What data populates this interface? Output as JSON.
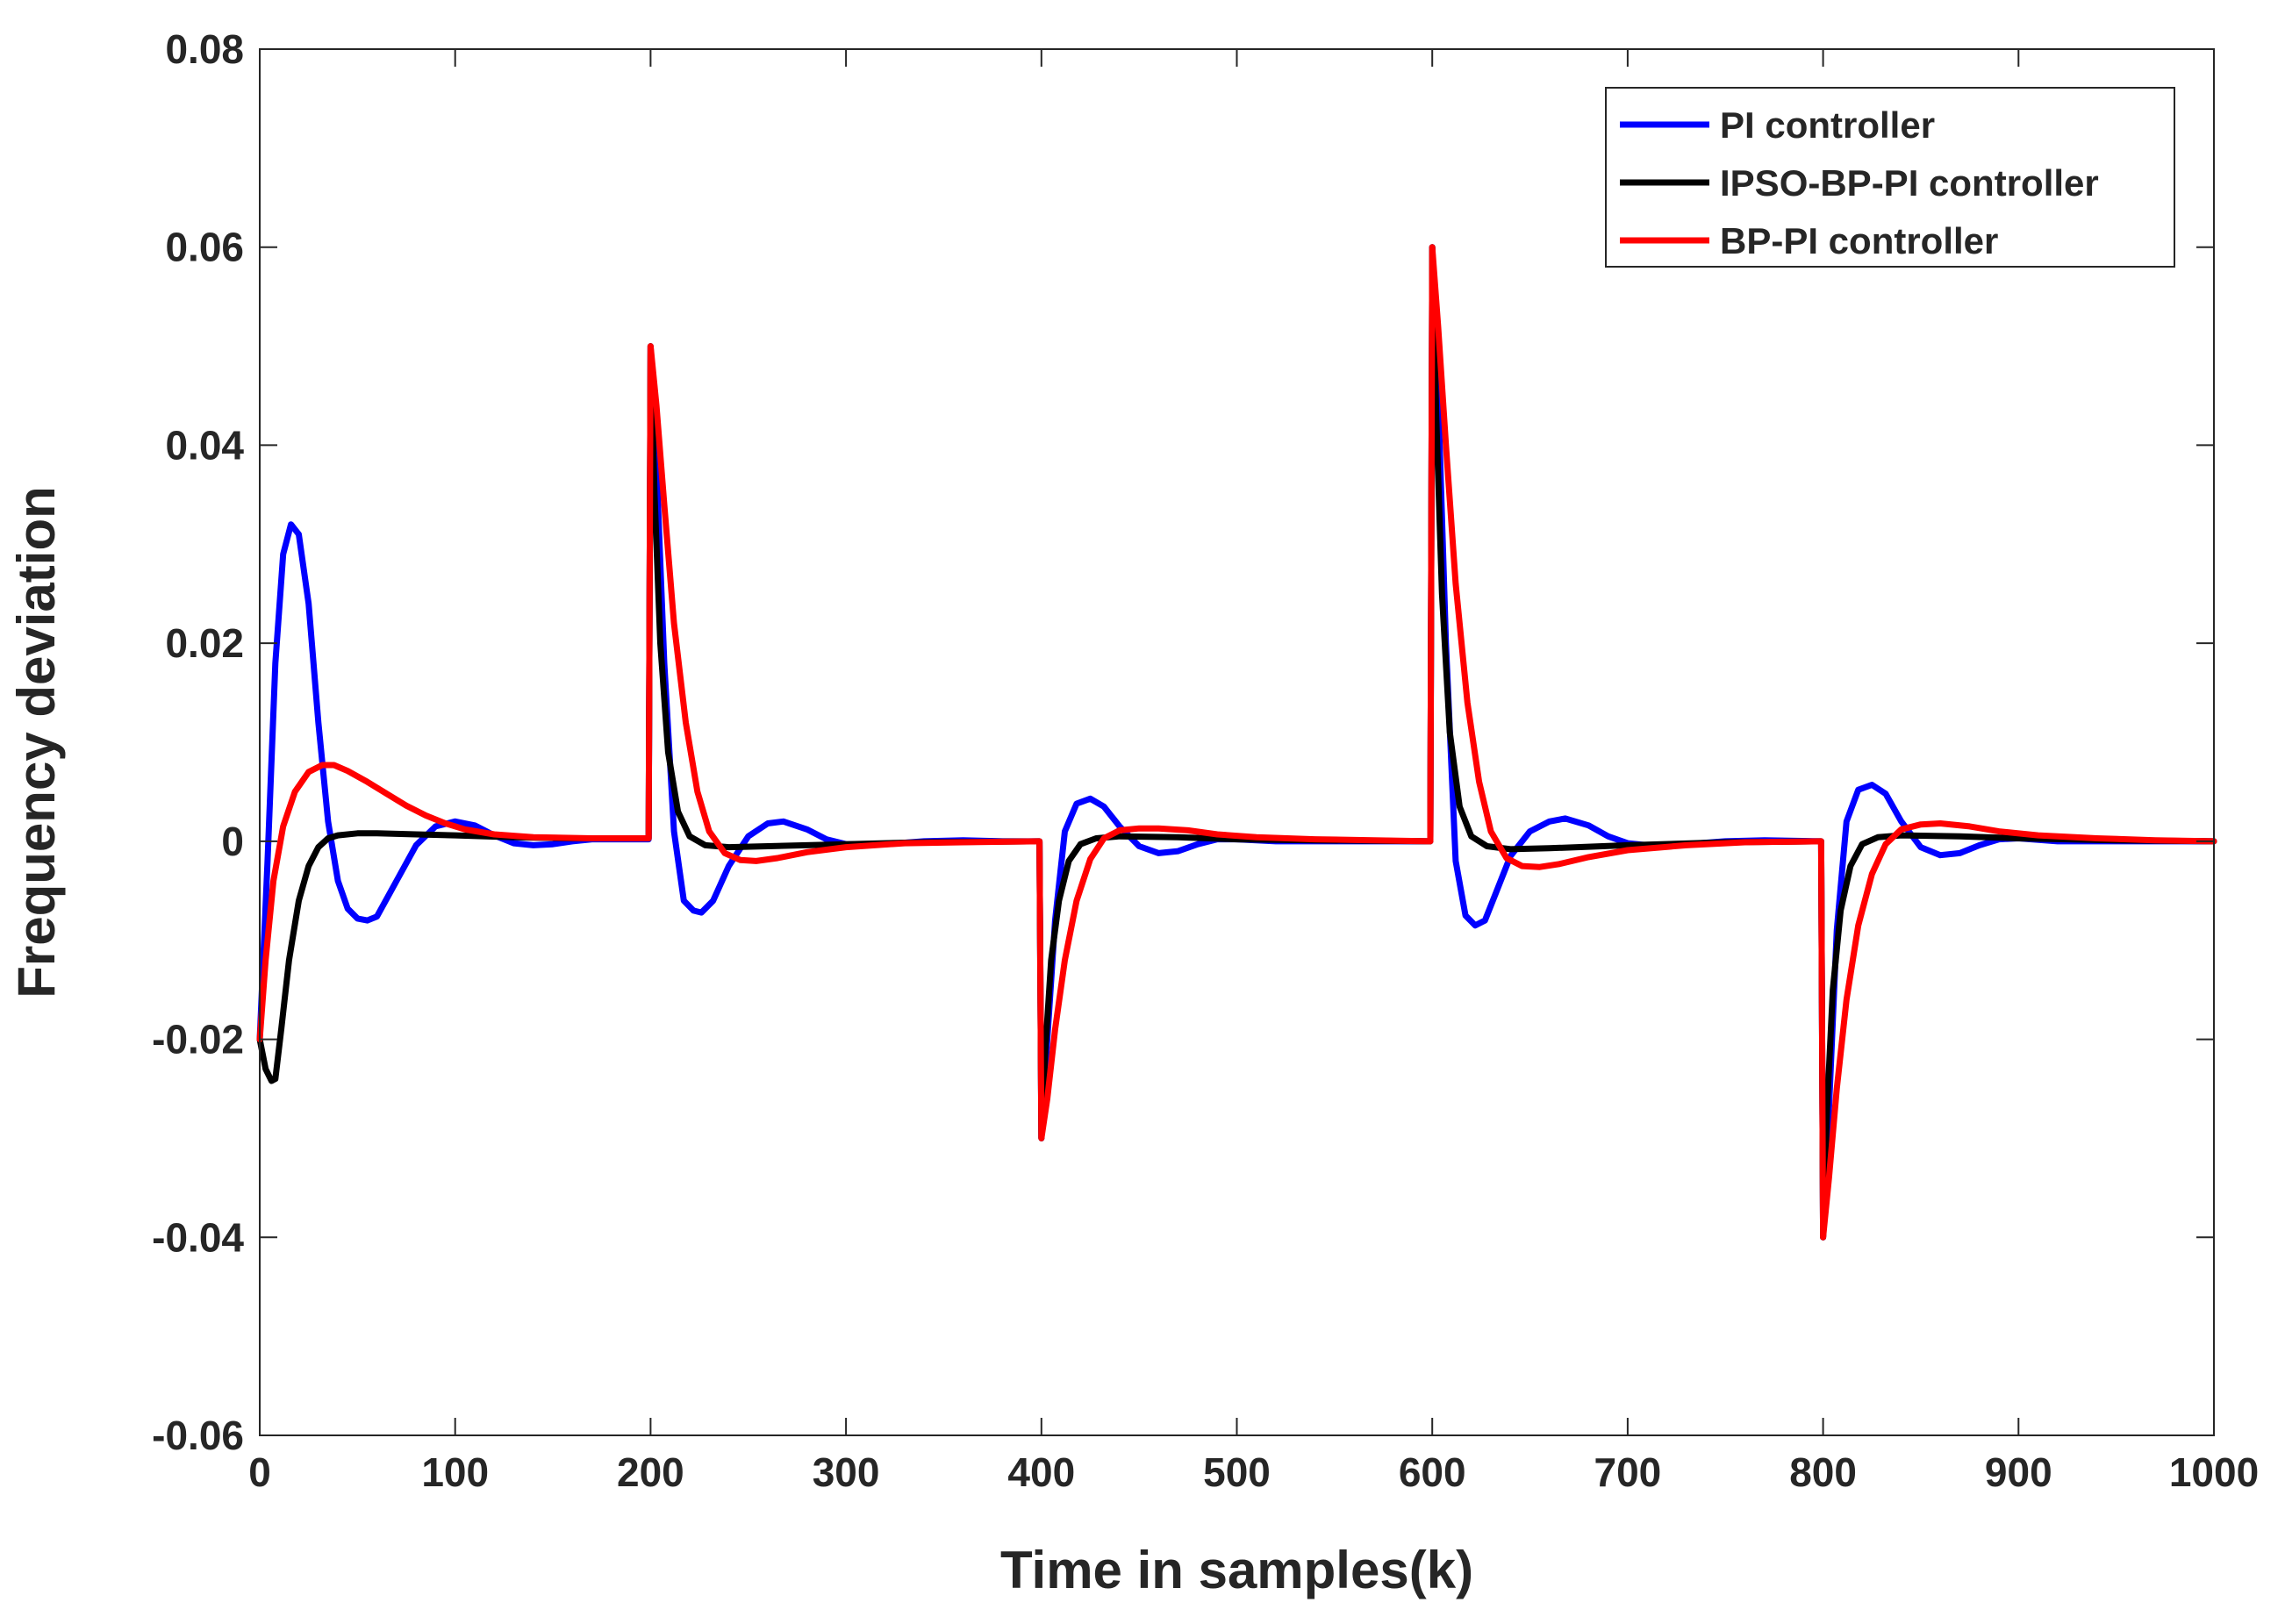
{
  "chart_data": {
    "type": "line",
    "title": "",
    "xlabel": "Time in samples(k)",
    "ylabel": "Frequency deviation",
    "xlim": [
      0,
      1000
    ],
    "ylim": [
      -0.06,
      0.08
    ],
    "grid": false,
    "legend_position": "top-right",
    "xticks": [
      0,
      100,
      200,
      300,
      400,
      500,
      600,
      700,
      800,
      900,
      1000
    ],
    "xtick_labels": [
      "0",
      "100",
      "200",
      "300",
      "400",
      "500",
      "600",
      "700",
      "800",
      "900",
      "1000"
    ],
    "yticks": [
      -0.06,
      -0.04,
      -0.02,
      0,
      0.02,
      0.04,
      0.06,
      0.08
    ],
    "ytick_labels": [
      "-0.06",
      "-0.04",
      "-0.02",
      "0",
      "0.02",
      "0.04",
      "0.06",
      "0.08"
    ],
    "series": [
      {
        "name": "PI controller",
        "color": "#0000ff",
        "points": [
          [
            0,
            -0.02
          ],
          [
            4,
            -0.002
          ],
          [
            8,
            0.018
          ],
          [
            12,
            0.029
          ],
          [
            16,
            0.032
          ],
          [
            20,
            0.031
          ],
          [
            25,
            0.024
          ],
          [
            30,
            0.012
          ],
          [
            35,
            0.002
          ],
          [
            40,
            -0.004
          ],
          [
            45,
            -0.0068
          ],
          [
            50,
            -0.0078
          ],
          [
            55,
            -0.008
          ],
          [
            60,
            -0.0076
          ],
          [
            70,
            -0.004
          ],
          [
            80,
            -0.0004
          ],
          [
            90,
            0.0015
          ],
          [
            100,
            0.002
          ],
          [
            110,
            0.0016
          ],
          [
            120,
            0.0006
          ],
          [
            130,
            -0.0002
          ],
          [
            140,
            -0.0004
          ],
          [
            150,
            -0.0003
          ],
          [
            160,
            0
          ],
          [
            170,
            0.0002
          ],
          [
            180,
            0.0002
          ],
          [
            199,
            0.0002
          ],
          [
            200,
            0.05
          ],
          [
            203,
            0.038
          ],
          [
            207,
            0.018
          ],
          [
            212,
            0.001
          ],
          [
            217,
            -0.006
          ],
          [
            222,
            -0.007
          ],
          [
            226,
            -0.0072
          ],
          [
            232,
            -0.006
          ],
          [
            240,
            -0.0025
          ],
          [
            250,
            0.0005
          ],
          [
            260,
            0.0018
          ],
          [
            268,
            0.002
          ],
          [
            280,
            0.0012
          ],
          [
            290,
            0.0002
          ],
          [
            300,
            -0.0003
          ],
          [
            320,
            -0.0003
          ],
          [
            340,
            0
          ],
          [
            360,
            0.0001
          ],
          [
            380,
            0
          ],
          [
            399,
            0
          ],
          [
            400,
            -0.03
          ],
          [
            403,
            -0.02
          ],
          [
            407,
            -0.008
          ],
          [
            412,
            0.001
          ],
          [
            418,
            0.0038
          ],
          [
            425,
            0.0043
          ],
          [
            432,
            0.0035
          ],
          [
            440,
            0.0015
          ],
          [
            450,
            -0.0005
          ],
          [
            460,
            -0.0012
          ],
          [
            470,
            -0.001
          ],
          [
            480,
            -0.0003
          ],
          [
            490,
            0.0002
          ],
          [
            500,
            0.0002
          ],
          [
            520,
            0
          ],
          [
            540,
            0
          ],
          [
            560,
            0
          ],
          [
            580,
            0
          ],
          [
            599,
            0
          ],
          [
            600,
            0.06
          ],
          [
            603,
            0.045
          ],
          [
            607,
            0.02
          ],
          [
            612,
            -0.002
          ],
          [
            617,
            -0.0075
          ],
          [
            622,
            -0.0085
          ],
          [
            627,
            -0.008
          ],
          [
            633,
            -0.005
          ],
          [
            640,
            -0.0015
          ],
          [
            650,
            0.001
          ],
          [
            660,
            0.002
          ],
          [
            668,
            0.0023
          ],
          [
            680,
            0.0016
          ],
          [
            690,
            0.0005
          ],
          [
            700,
            -0.0002
          ],
          [
            710,
            -0.0004
          ],
          [
            730,
            -0.0003
          ],
          [
            750,
            0
          ],
          [
            770,
            0.0001
          ],
          [
            799,
            0
          ],
          [
            800,
            -0.04
          ],
          [
            803,
            -0.027
          ],
          [
            807,
            -0.009
          ],
          [
            812,
            0.002
          ],
          [
            818,
            0.0052
          ],
          [
            825,
            0.0057
          ],
          [
            832,
            0.0048
          ],
          [
            840,
            0.002
          ],
          [
            850,
            -0.0006
          ],
          [
            860,
            -0.0014
          ],
          [
            870,
            -0.0012
          ],
          [
            880,
            -0.0004
          ],
          [
            890,
            0.0002
          ],
          [
            900,
            0.0003
          ],
          [
            920,
            0
          ],
          [
            940,
            0
          ],
          [
            970,
            0
          ],
          [
            1000,
            0
          ]
        ]
      },
      {
        "name": "IPSO-BP-PI controller",
        "color": "#000000",
        "points": [
          [
            0,
            -0.02
          ],
          [
            3,
            -0.023
          ],
          [
            6,
            -0.0242
          ],
          [
            8,
            -0.024
          ],
          [
            11,
            -0.019
          ],
          [
            15,
            -0.012
          ],
          [
            20,
            -0.006
          ],
          [
            25,
            -0.0025
          ],
          [
            30,
            -0.0006
          ],
          [
            35,
            0.0003
          ],
          [
            40,
            0.0006
          ],
          [
            50,
            0.0008
          ],
          [
            60,
            0.0008
          ],
          [
            80,
            0.0007
          ],
          [
            100,
            0.0006
          ],
          [
            130,
            0.0004
          ],
          [
            160,
            0.0003
          ],
          [
            199,
            0.0003
          ],
          [
            200,
            0.05
          ],
          [
            202,
            0.035
          ],
          [
            205,
            0.02
          ],
          [
            209,
            0.009
          ],
          [
            214,
            0.003
          ],
          [
            220,
            0.0005
          ],
          [
            228,
            -0.0004
          ],
          [
            240,
            -0.0006
          ],
          [
            260,
            -0.0005
          ],
          [
            300,
            -0.0003
          ],
          [
            340,
            -0.0001
          ],
          [
            399,
            0
          ],
          [
            400,
            -0.03
          ],
          [
            402,
            -0.021
          ],
          [
            405,
            -0.012
          ],
          [
            409,
            -0.006
          ],
          [
            414,
            -0.002
          ],
          [
            420,
            -0.0003
          ],
          [
            428,
            0.0003
          ],
          [
            440,
            0.0005
          ],
          [
            470,
            0.0004
          ],
          [
            500,
            0.0002
          ],
          [
            540,
            0.0001
          ],
          [
            599,
            0
          ],
          [
            600,
            0.06
          ],
          [
            602,
            0.043
          ],
          [
            605,
            0.025
          ],
          [
            609,
            0.011
          ],
          [
            614,
            0.0035
          ],
          [
            620,
            0.0005
          ],
          [
            628,
            -0.0005
          ],
          [
            640,
            -0.0008
          ],
          [
            660,
            -0.0007
          ],
          [
            700,
            -0.0004
          ],
          [
            750,
            -0.0001
          ],
          [
            799,
            0
          ],
          [
            800,
            -0.04
          ],
          [
            802,
            -0.027
          ],
          [
            805,
            -0.015
          ],
          [
            809,
            -0.007
          ],
          [
            814,
            -0.0025
          ],
          [
            820,
            -0.0003
          ],
          [
            828,
            0.0004
          ],
          [
            840,
            0.0006
          ],
          [
            870,
            0.0005
          ],
          [
            900,
            0.0003
          ],
          [
            950,
            0.0001
          ],
          [
            1000,
            0
          ]
        ]
      },
      {
        "name": "BP-PI controller",
        "color": "#ff0000",
        "points": [
          [
            0,
            -0.02
          ],
          [
            3,
            -0.012
          ],
          [
            7,
            -0.004
          ],
          [
            12,
            0.0015
          ],
          [
            18,
            0.005
          ],
          [
            25,
            0.007
          ],
          [
            32,
            0.0077
          ],
          [
            38,
            0.0077
          ],
          [
            45,
            0.0071
          ],
          [
            55,
            0.006
          ],
          [
            65,
            0.0048
          ],
          [
            75,
            0.0036
          ],
          [
            85,
            0.0026
          ],
          [
            95,
            0.0018
          ],
          [
            105,
            0.0012
          ],
          [
            120,
            0.0007
          ],
          [
            140,
            0.0004
          ],
          [
            170,
            0.0003
          ],
          [
            199,
            0.0003
          ],
          [
            200,
            0.05
          ],
          [
            203,
            0.044
          ],
          [
            207,
            0.034
          ],
          [
            212,
            0.022
          ],
          [
            218,
            0.012
          ],
          [
            224,
            0.005
          ],
          [
            230,
            0.001
          ],
          [
            238,
            -0.0012
          ],
          [
            246,
            -0.0019
          ],
          [
            254,
            -0.002
          ],
          [
            265,
            -0.0017
          ],
          [
            280,
            -0.0011
          ],
          [
            300,
            -0.0006
          ],
          [
            330,
            -0.0002
          ],
          [
            360,
            -0.0001
          ],
          [
            399,
            0
          ],
          [
            400,
            -0.03
          ],
          [
            403,
            -0.026
          ],
          [
            407,
            -0.019
          ],
          [
            412,
            -0.012
          ],
          [
            418,
            -0.006
          ],
          [
            425,
            -0.0018
          ],
          [
            432,
            0.0003
          ],
          [
            440,
            0.0011
          ],
          [
            450,
            0.0013
          ],
          [
            460,
            0.0013
          ],
          [
            475,
            0.0011
          ],
          [
            490,
            0.0007
          ],
          [
            510,
            0.0004
          ],
          [
            540,
            0.0002
          ],
          [
            570,
            0.0001
          ],
          [
            599,
            0
          ],
          [
            600,
            0.06
          ],
          [
            603,
            0.052
          ],
          [
            607,
            0.04
          ],
          [
            612,
            0.026
          ],
          [
            618,
            0.014
          ],
          [
            624,
            0.006
          ],
          [
            630,
            0.001
          ],
          [
            638,
            -0.0017
          ],
          [
            646,
            -0.0025
          ],
          [
            655,
            -0.0026
          ],
          [
            665,
            -0.0023
          ],
          [
            680,
            -0.0016
          ],
          [
            700,
            -0.0009
          ],
          [
            730,
            -0.0004
          ],
          [
            760,
            -0.0001
          ],
          [
            799,
            0
          ],
          [
            800,
            -0.04
          ],
          [
            803,
            -0.034
          ],
          [
            807,
            -0.025
          ],
          [
            812,
            -0.016
          ],
          [
            818,
            -0.0085
          ],
          [
            825,
            -0.0033
          ],
          [
            832,
            -0.0003
          ],
          [
            840,
            0.0012
          ],
          [
            850,
            0.0017
          ],
          [
            860,
            0.0018
          ],
          [
            875,
            0.0015
          ],
          [
            890,
            0.001
          ],
          [
            910,
            0.0006
          ],
          [
            940,
            0.0003
          ],
          [
            970,
            0.0001
          ],
          [
            1000,
            0
          ]
        ]
      }
    ]
  }
}
